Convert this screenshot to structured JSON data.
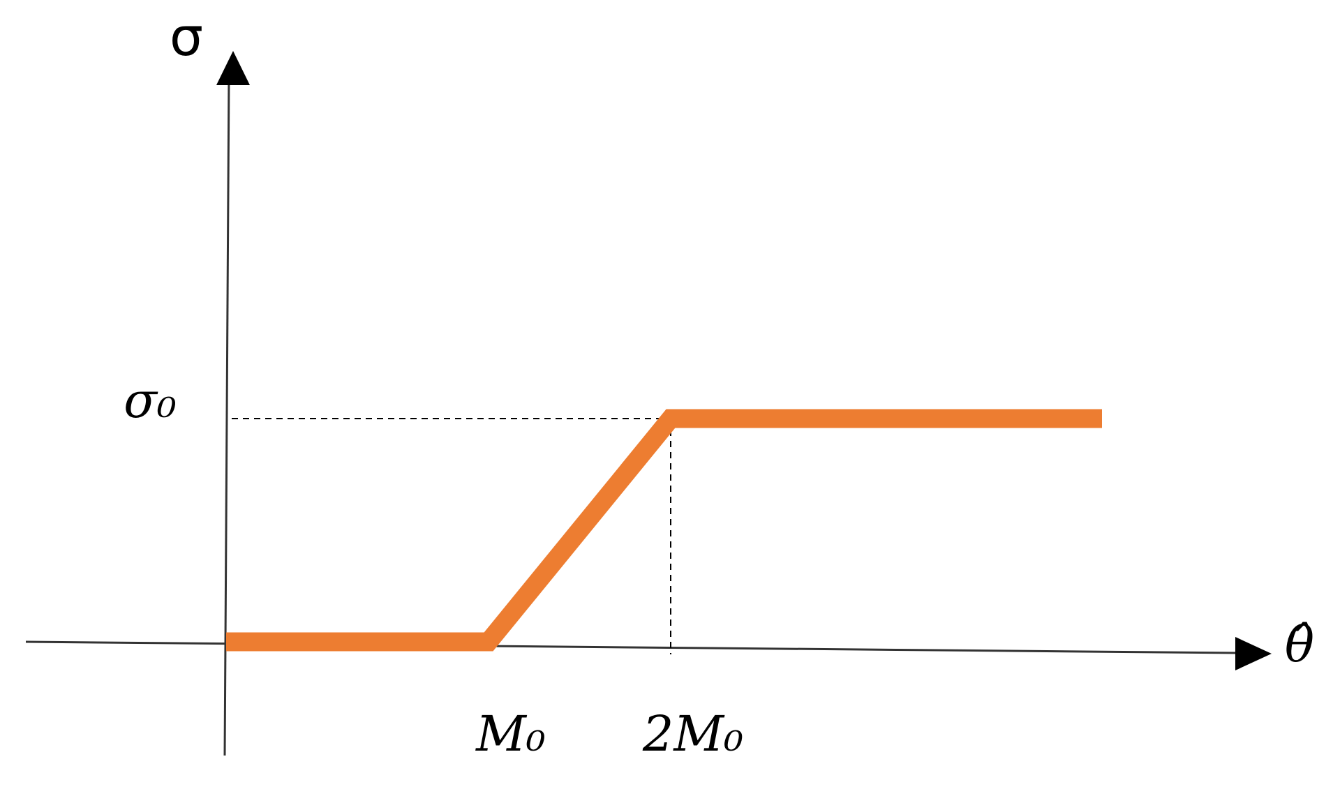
{
  "diagram": {
    "y_axis_label": "σ",
    "x_axis_label": "θ̂",
    "level_label": "σ₀",
    "x_markers": [
      "M₀",
      "2M₀"
    ]
  }
}
